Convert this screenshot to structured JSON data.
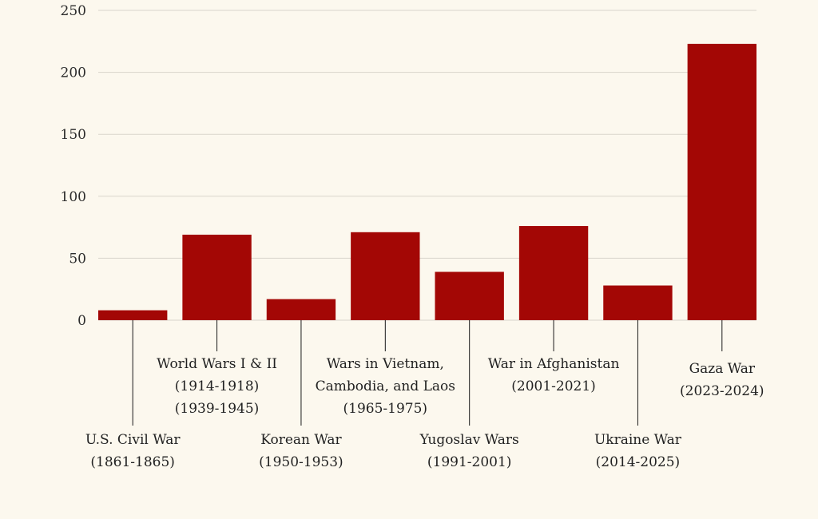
{
  "chart_data": {
    "type": "bar",
    "title": "",
    "xlabel": "",
    "ylabel": "",
    "ylim": [
      0,
      250
    ],
    "yticks": [
      0,
      50,
      100,
      150,
      200,
      250
    ],
    "grid": true,
    "legend": "none",
    "categories": [
      [
        "U.S. Civil War",
        "(1861-1865)"
      ],
      [
        "World Wars I & II",
        "(1914-1918)",
        "(1939-1945)"
      ],
      [
        "Korean War",
        "(1950-1953)"
      ],
      [
        "Wars in Vietnam,",
        "Cambodia, and Laos",
        "(1965-1975)"
      ],
      [
        "Yugoslav Wars",
        "(1991-2001)"
      ],
      [
        "War in Afghanistan",
        "(2001-2021)"
      ],
      [
        "Ukraine War",
        "(2014-2025)"
      ],
      [
        "Gaza War",
        "(2023-2024)"
      ]
    ],
    "values": [
      8,
      69,
      17,
      71,
      39,
      76,
      28,
      223
    ],
    "label_placement": [
      "low",
      "mid",
      "low",
      "mid",
      "low",
      "mid",
      "low",
      "mid"
    ]
  },
  "colors": {
    "background": "#fcf8ee",
    "bar": "#a30705",
    "grid": "#d9d5cc",
    "leader": "#1a1a1a",
    "text": "#222222"
  }
}
